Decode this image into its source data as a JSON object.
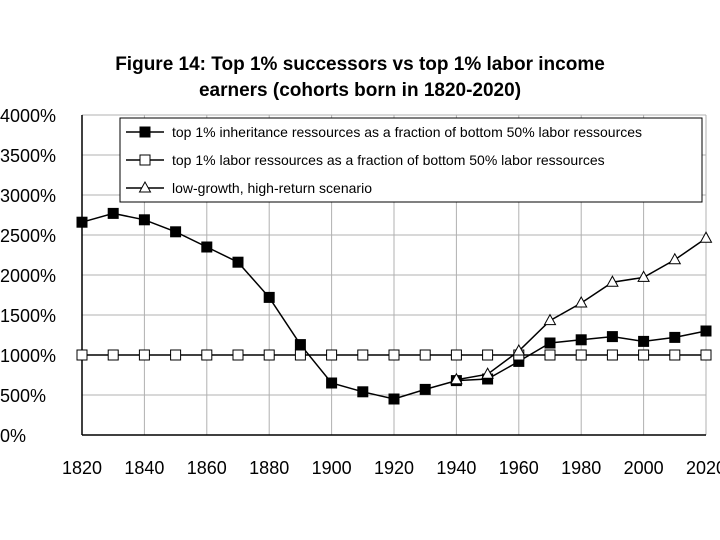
{
  "chart_data": {
    "type": "line",
    "title_line1": "Figure 14: Top 1% successors vs top 1% labor income",
    "title_line2": "earners (cohorts born in 1820-2020)",
    "x": [
      1820,
      1830,
      1840,
      1850,
      1860,
      1870,
      1880,
      1890,
      1900,
      1910,
      1920,
      1930,
      1940,
      1950,
      1960,
      1970,
      1980,
      1990,
      2000,
      2010,
      2020
    ],
    "xticks": [
      1820,
      1840,
      1860,
      1880,
      1900,
      1920,
      1940,
      1960,
      1980,
      2000,
      2020
    ],
    "xlim": [
      1820,
      2020
    ],
    "ylim": [
      0,
      4000
    ],
    "yticks": [
      0,
      500,
      1000,
      1500,
      2000,
      2500,
      3000,
      3500,
      4000
    ],
    "ytick_labels": [
      "0%",
      "500%",
      "1000%",
      "1500%",
      "2000%",
      "2500%",
      "3000%",
      "3500%",
      "4000%"
    ],
    "grid": true,
    "legend_position": "top-right",
    "series": [
      {
        "name": "top 1% inheritance ressources as a fraction of bottom 50% labor ressources",
        "marker": "filled-square",
        "values": [
          2660,
          2770,
          2690,
          2540,
          2350,
          2160,
          1720,
          1130,
          650,
          540,
          450,
          570,
          680,
          700,
          920,
          1150,
          1190,
          1230,
          1170,
          1220,
          1300
        ]
      },
      {
        "name": "top 1% labor ressources as a fraction of bottom 50% labor ressources",
        "marker": "open-square",
        "values": [
          1000,
          1000,
          1000,
          1000,
          1000,
          1000,
          1000,
          1000,
          1000,
          1000,
          1000,
          1000,
          1000,
          1000,
          1000,
          1000,
          1000,
          1000,
          1000,
          1000,
          1000
        ]
      },
      {
        "name": "low-growth, high-return scenario",
        "marker": "open-triangle",
        "x": [
          1940,
          1950,
          1960,
          1970,
          1980,
          1990,
          2000,
          2010,
          2020
        ],
        "values": [
          690,
          760,
          1050,
          1430,
          1650,
          1910,
          1970,
          2190,
          2460
        ]
      }
    ]
  }
}
